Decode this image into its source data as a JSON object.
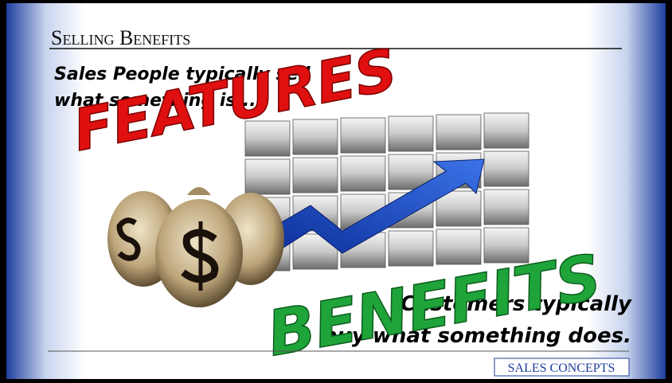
{
  "slide": {
    "title": "Selling Benefits",
    "point_1": [
      "Sales People typically sell",
      "what something is..."
    ],
    "overlay_1": "FEATURES",
    "point_2": [
      "Customers typically",
      "buy what something does."
    ],
    "overlay_2": "BENEFITS",
    "footer": "SALES CONCEPTS"
  }
}
